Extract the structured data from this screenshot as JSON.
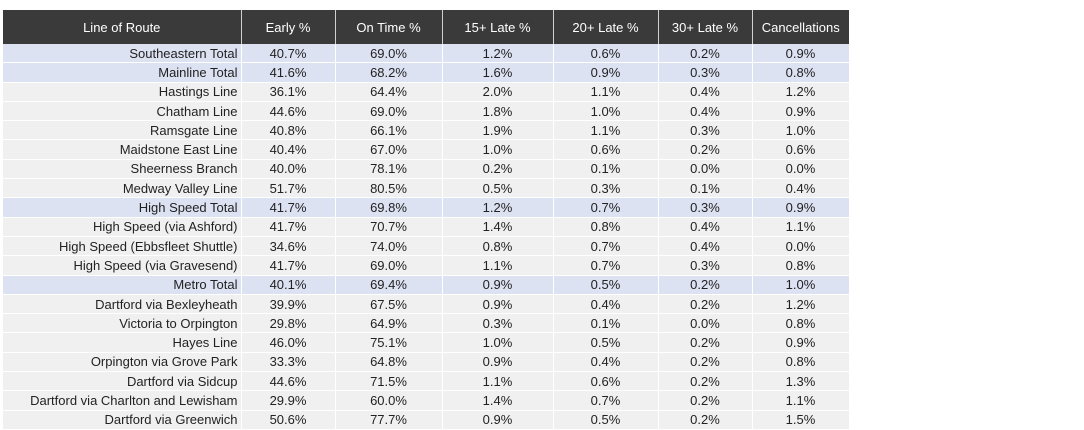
{
  "chart_data": {
    "type": "table",
    "columns": [
      "Line of Route",
      "Early %",
      "On Time %",
      "15+ Late %",
      "20+ Late %",
      "30+ Late %",
      "Cancellations"
    ],
    "rows": [
      {
        "route": "Southeastern Total",
        "values": [
          "40.7%",
          "69.0%",
          "1.2%",
          "0.6%",
          "0.2%",
          "0.9%"
        ],
        "total": true
      },
      {
        "route": "Mainline Total",
        "values": [
          "41.6%",
          "68.2%",
          "1.6%",
          "0.9%",
          "0.3%",
          "0.8%"
        ],
        "total": true
      },
      {
        "route": "Hastings Line",
        "values": [
          "36.1%",
          "64.4%",
          "2.0%",
          "1.1%",
          "0.4%",
          "1.2%"
        ],
        "total": false
      },
      {
        "route": "Chatham Line",
        "values": [
          "44.6%",
          "69.0%",
          "1.8%",
          "1.0%",
          "0.4%",
          "0.9%"
        ],
        "total": false
      },
      {
        "route": "Ramsgate Line",
        "values": [
          "40.8%",
          "66.1%",
          "1.9%",
          "1.1%",
          "0.3%",
          "1.0%"
        ],
        "total": false
      },
      {
        "route": "Maidstone East Line",
        "values": [
          "40.4%",
          "67.0%",
          "1.0%",
          "0.6%",
          "0.2%",
          "0.6%"
        ],
        "total": false
      },
      {
        "route": "Sheerness Branch",
        "values": [
          "40.0%",
          "78.1%",
          "0.2%",
          "0.1%",
          "0.0%",
          "0.0%"
        ],
        "total": false
      },
      {
        "route": "Medway Valley Line",
        "values": [
          "51.7%",
          "80.5%",
          "0.5%",
          "0.3%",
          "0.1%",
          "0.4%"
        ],
        "total": false
      },
      {
        "route": "High Speed Total",
        "values": [
          "41.7%",
          "69.8%",
          "1.2%",
          "0.7%",
          "0.3%",
          "0.9%"
        ],
        "total": true
      },
      {
        "route": "High Speed (via Ashford)",
        "values": [
          "41.7%",
          "70.7%",
          "1.4%",
          "0.8%",
          "0.4%",
          "1.1%"
        ],
        "total": false
      },
      {
        "route": "High Speed (Ebbsfleet Shuttle)",
        "values": [
          "34.6%",
          "74.0%",
          "0.8%",
          "0.7%",
          "0.4%",
          "0.0%"
        ],
        "total": false
      },
      {
        "route": "High Speed (via Gravesend)",
        "values": [
          "41.7%",
          "69.0%",
          "1.1%",
          "0.7%",
          "0.3%",
          "0.8%"
        ],
        "total": false
      },
      {
        "route": "Metro Total",
        "values": [
          "40.1%",
          "69.4%",
          "0.9%",
          "0.5%",
          "0.2%",
          "1.0%"
        ],
        "total": true
      },
      {
        "route": "Dartford via Bexleyheath",
        "values": [
          "39.9%",
          "67.5%",
          "0.9%",
          "0.4%",
          "0.2%",
          "1.2%"
        ],
        "total": false
      },
      {
        "route": "Victoria to Orpington",
        "values": [
          "29.8%",
          "64.9%",
          "0.3%",
          "0.1%",
          "0.0%",
          "0.8%"
        ],
        "total": false
      },
      {
        "route": "Hayes Line",
        "values": [
          "46.0%",
          "75.1%",
          "1.0%",
          "0.5%",
          "0.2%",
          "0.9%"
        ],
        "total": false
      },
      {
        "route": "Orpington via Grove Park",
        "values": [
          "33.3%",
          "64.8%",
          "0.9%",
          "0.4%",
          "0.2%",
          "0.8%"
        ],
        "total": false
      },
      {
        "route": "Dartford via Sidcup",
        "values": [
          "44.6%",
          "71.5%",
          "1.1%",
          "0.6%",
          "0.2%",
          "1.3%"
        ],
        "total": false
      },
      {
        "route": "Dartford via Charlton and Lewisham",
        "values": [
          "29.9%",
          "60.0%",
          "1.4%",
          "0.7%",
          "0.2%",
          "1.1%"
        ],
        "total": false
      },
      {
        "route": "Dartford via Greenwich",
        "values": [
          "50.6%",
          "77.7%",
          "0.9%",
          "0.5%",
          "0.2%",
          "1.5%"
        ],
        "total": false
      }
    ],
    "colors": {
      "header_bg": "#3a3a3a",
      "header_text": "#ffffff",
      "row_bg": "#f0f0f0",
      "total_row_bg": "#dde2f3"
    }
  }
}
